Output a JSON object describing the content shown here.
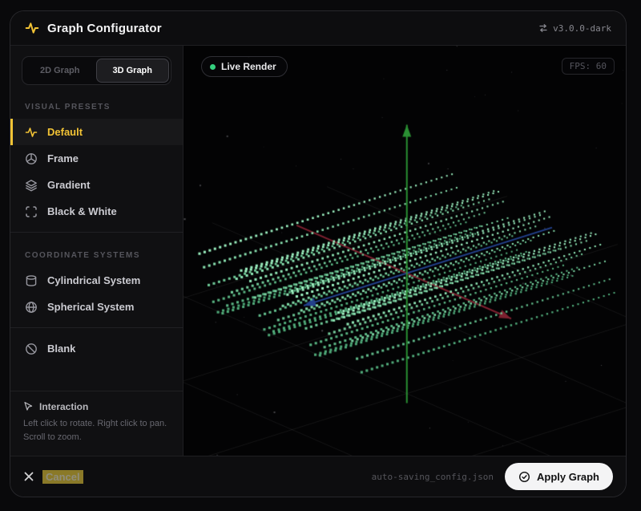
{
  "header": {
    "title": "Graph Configurator",
    "version": "v3.0.0-dark"
  },
  "mode_toggle": {
    "options": [
      "2D Graph",
      "3D Graph"
    ],
    "active": "3D Graph"
  },
  "sidebar": {
    "sections": [
      {
        "label": "VISUAL PRESETS",
        "items": [
          {
            "label": "Default",
            "icon": "activity-icon",
            "active": true
          },
          {
            "label": "Frame",
            "icon": "orb-icon",
            "active": false
          },
          {
            "label": "Gradient",
            "icon": "layers-icon",
            "active": false
          },
          {
            "label": "Black & White",
            "icon": "scan-icon",
            "active": false
          }
        ]
      },
      {
        "label": "COORDINATE SYSTEMS",
        "items": [
          {
            "label": "Cylindrical System",
            "icon": "cylinder-icon",
            "active": false
          },
          {
            "label": "Spherical System",
            "icon": "globe-icon",
            "active": false
          }
        ]
      },
      {
        "label": "",
        "items": [
          {
            "label": "Blank",
            "icon": "ban-icon",
            "active": false
          }
        ]
      }
    ],
    "interaction": {
      "title": "Interaction",
      "body": "Left click to rotate. Right click to pan. Scroll to zoom."
    }
  },
  "viewport": {
    "live_badge": "Live Render",
    "fps_label": "FPS: 60"
  },
  "footer": {
    "cancel_label": "Cancel",
    "filename": "auto-saving_config.json",
    "apply_label": "Apply Graph"
  },
  "colors": {
    "accent_yellow": "#f2c335",
    "live_green": "#35d07f",
    "window_bg": "#0b0b0d",
    "sidebar_bg": "#101012",
    "canvas_bg": "#030304",
    "cancel_highlight": "#8a7928"
  },
  "chart_data": {
    "type": "scatter",
    "subtype": "3d-point-surface",
    "title": "3D Graph preview - Default preset",
    "surface_function": "z = sin(frequency * x), constant along y (ripple ridges)",
    "grid": {
      "nx": 36,
      "ny": 50,
      "x_range": [
        -1,
        1
      ],
      "y_range": [
        -1,
        1
      ]
    },
    "wave": {
      "frequency": 10.5,
      "amplitude": 34
    },
    "point_color_base": [
      96,
      210,
      148
    ],
    "point_color_crest": [
      160,
      244,
      196
    ],
    "axes": [
      {
        "axis": "x",
        "color": "#7e2130",
        "arrow": "lower-right"
      },
      {
        "axis": "y",
        "color": "#23418c",
        "arrow": "lower-left"
      },
      {
        "axis": "z",
        "color": "#2a8f33",
        "arrow": "up"
      }
    ],
    "view": {
      "origin_x_frac": 0.505,
      "origin_y_frac": 0.555,
      "u": [
        0.92,
        0.4
      ],
      "v": [
        0.955,
        -0.3
      ],
      "scale_u": 110,
      "scale_v": 165,
      "axis_len": {
        "x_neg": 150,
        "x_pos": 142,
        "y_neg": 135,
        "y_pos": 190,
        "z_up": 185,
        "z_down": 162
      }
    },
    "stars": {
      "count": 52,
      "color": "#8a8a90"
    },
    "floor_grid": {
      "lines": 5,
      "spacing": 150,
      "z_offset": -150,
      "extent": 420,
      "color": "rgba(255,255,255,0.08)"
    },
    "legend": "none",
    "gridlines": "perspective floor grid"
  }
}
